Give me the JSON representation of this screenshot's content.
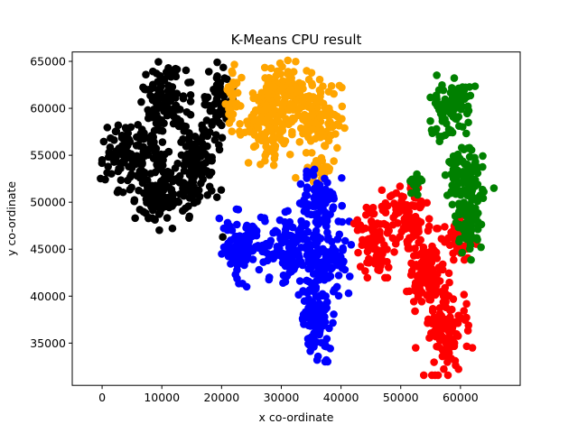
{
  "chart_data": {
    "type": "scatter",
    "title": "K-Means CPU result",
    "xlabel": "x co-ordinate",
    "ylabel": "y co-ordinate",
    "xlim": [
      -5000,
      70000
    ],
    "ylim": [
      30500,
      66000
    ],
    "xticks": [
      0,
      10000,
      20000,
      30000,
      40000,
      50000,
      60000
    ],
    "yticks": [
      35000,
      40000,
      45000,
      50000,
      55000,
      60000,
      65000
    ],
    "grid": false,
    "legend": "none",
    "seed": 7,
    "series": [
      {
        "color": "#000000",
        "blobs": [
          {
            "cx": 4800,
            "cy": 54800,
            "sx": 2300,
            "sy": 1700,
            "n": 110
          },
          {
            "cx": 10200,
            "cy": 60800,
            "sx": 2100,
            "sy": 2000,
            "n": 120
          },
          {
            "cx": 10000,
            "cy": 51200,
            "sx": 2100,
            "sy": 1900,
            "n": 120
          },
          {
            "cx": 16200,
            "cy": 54200,
            "sx": 1700,
            "sy": 2100,
            "n": 110
          },
          {
            "cx": 19600,
            "cy": 60500,
            "sx": 1100,
            "sy": 2000,
            "n": 70
          }
        ],
        "points": [
          {
            "x": 0,
            "y": 54500
          },
          {
            "x": 20200,
            "y": 46300
          },
          {
            "x": 11100,
            "y": 64300
          },
          {
            "x": 2700,
            "y": 58200
          }
        ]
      },
      {
        "color": "#ffa500",
        "blobs": [
          {
            "cx": 21700,
            "cy": 60700,
            "sx": 800,
            "sy": 1800,
            "n": 30
          },
          {
            "cx": 27400,
            "cy": 57900,
            "sx": 2000,
            "sy": 1800,
            "n": 110
          },
          {
            "cx": 31000,
            "cy": 61800,
            "sx": 2000,
            "sy": 1500,
            "n": 100
          },
          {
            "cx": 36300,
            "cy": 59100,
            "sx": 2300,
            "sy": 1800,
            "n": 110
          },
          {
            "cx": 36600,
            "cy": 53300,
            "sx": 1000,
            "sy": 800,
            "n": 25
          }
        ],
        "points": [
          {
            "x": 29800,
            "y": 64800
          },
          {
            "x": 32400,
            "y": 52600
          }
        ]
      },
      {
        "color": "#0000ff",
        "blobs": [
          {
            "cx": 23800,
            "cy": 45300,
            "sx": 1900,
            "sy": 1800,
            "n": 100
          },
          {
            "cx": 31000,
            "cy": 45300,
            "sx": 2000,
            "sy": 1800,
            "n": 110
          },
          {
            "cx": 36200,
            "cy": 49800,
            "sx": 1800,
            "sy": 1700,
            "n": 100
          },
          {
            "cx": 37300,
            "cy": 44000,
            "sx": 2000,
            "sy": 1800,
            "n": 110
          },
          {
            "cx": 35700,
            "cy": 37200,
            "sx": 1400,
            "sy": 1900,
            "n": 100
          }
        ],
        "points": [
          {
            "x": 24200,
            "y": 41000
          },
          {
            "x": 28000,
            "y": 42000
          },
          {
            "x": 36000,
            "y": 33200
          }
        ]
      },
      {
        "color": "#ff0000",
        "blobs": [
          {
            "cx": 45700,
            "cy": 45700,
            "sx": 1600,
            "sy": 1700,
            "n": 90
          },
          {
            "cx": 50800,
            "cy": 48600,
            "sx": 1800,
            "sy": 1600,
            "n": 100
          },
          {
            "cx": 54400,
            "cy": 42800,
            "sx": 1700,
            "sy": 2000,
            "n": 110
          },
          {
            "cx": 57600,
            "cy": 36200,
            "sx": 1700,
            "sy": 2100,
            "n": 110
          },
          {
            "cx": 60000,
            "cy": 46500,
            "sx": 1200,
            "sy": 1200,
            "n": 40
          }
        ],
        "points": [
          {
            "x": 52500,
            "y": 34500
          },
          {
            "x": 62000,
            "y": 34500
          },
          {
            "x": 51000,
            "y": 40500
          }
        ]
      },
      {
        "color": "#008000",
        "blobs": [
          {
            "cx": 58700,
            "cy": 60000,
            "sx": 1700,
            "sy": 1600,
            "n": 90
          },
          {
            "cx": 60600,
            "cy": 52700,
            "sx": 1500,
            "sy": 1900,
            "n": 90
          },
          {
            "cx": 61600,
            "cy": 47600,
            "sx": 1100,
            "sy": 1700,
            "n": 60
          },
          {
            "cx": 52200,
            "cy": 51600,
            "sx": 900,
            "sy": 700,
            "n": 15
          }
        ],
        "points": [
          {
            "x": 65600,
            "y": 51500
          },
          {
            "x": 56500,
            "y": 57000
          }
        ]
      }
    ]
  }
}
